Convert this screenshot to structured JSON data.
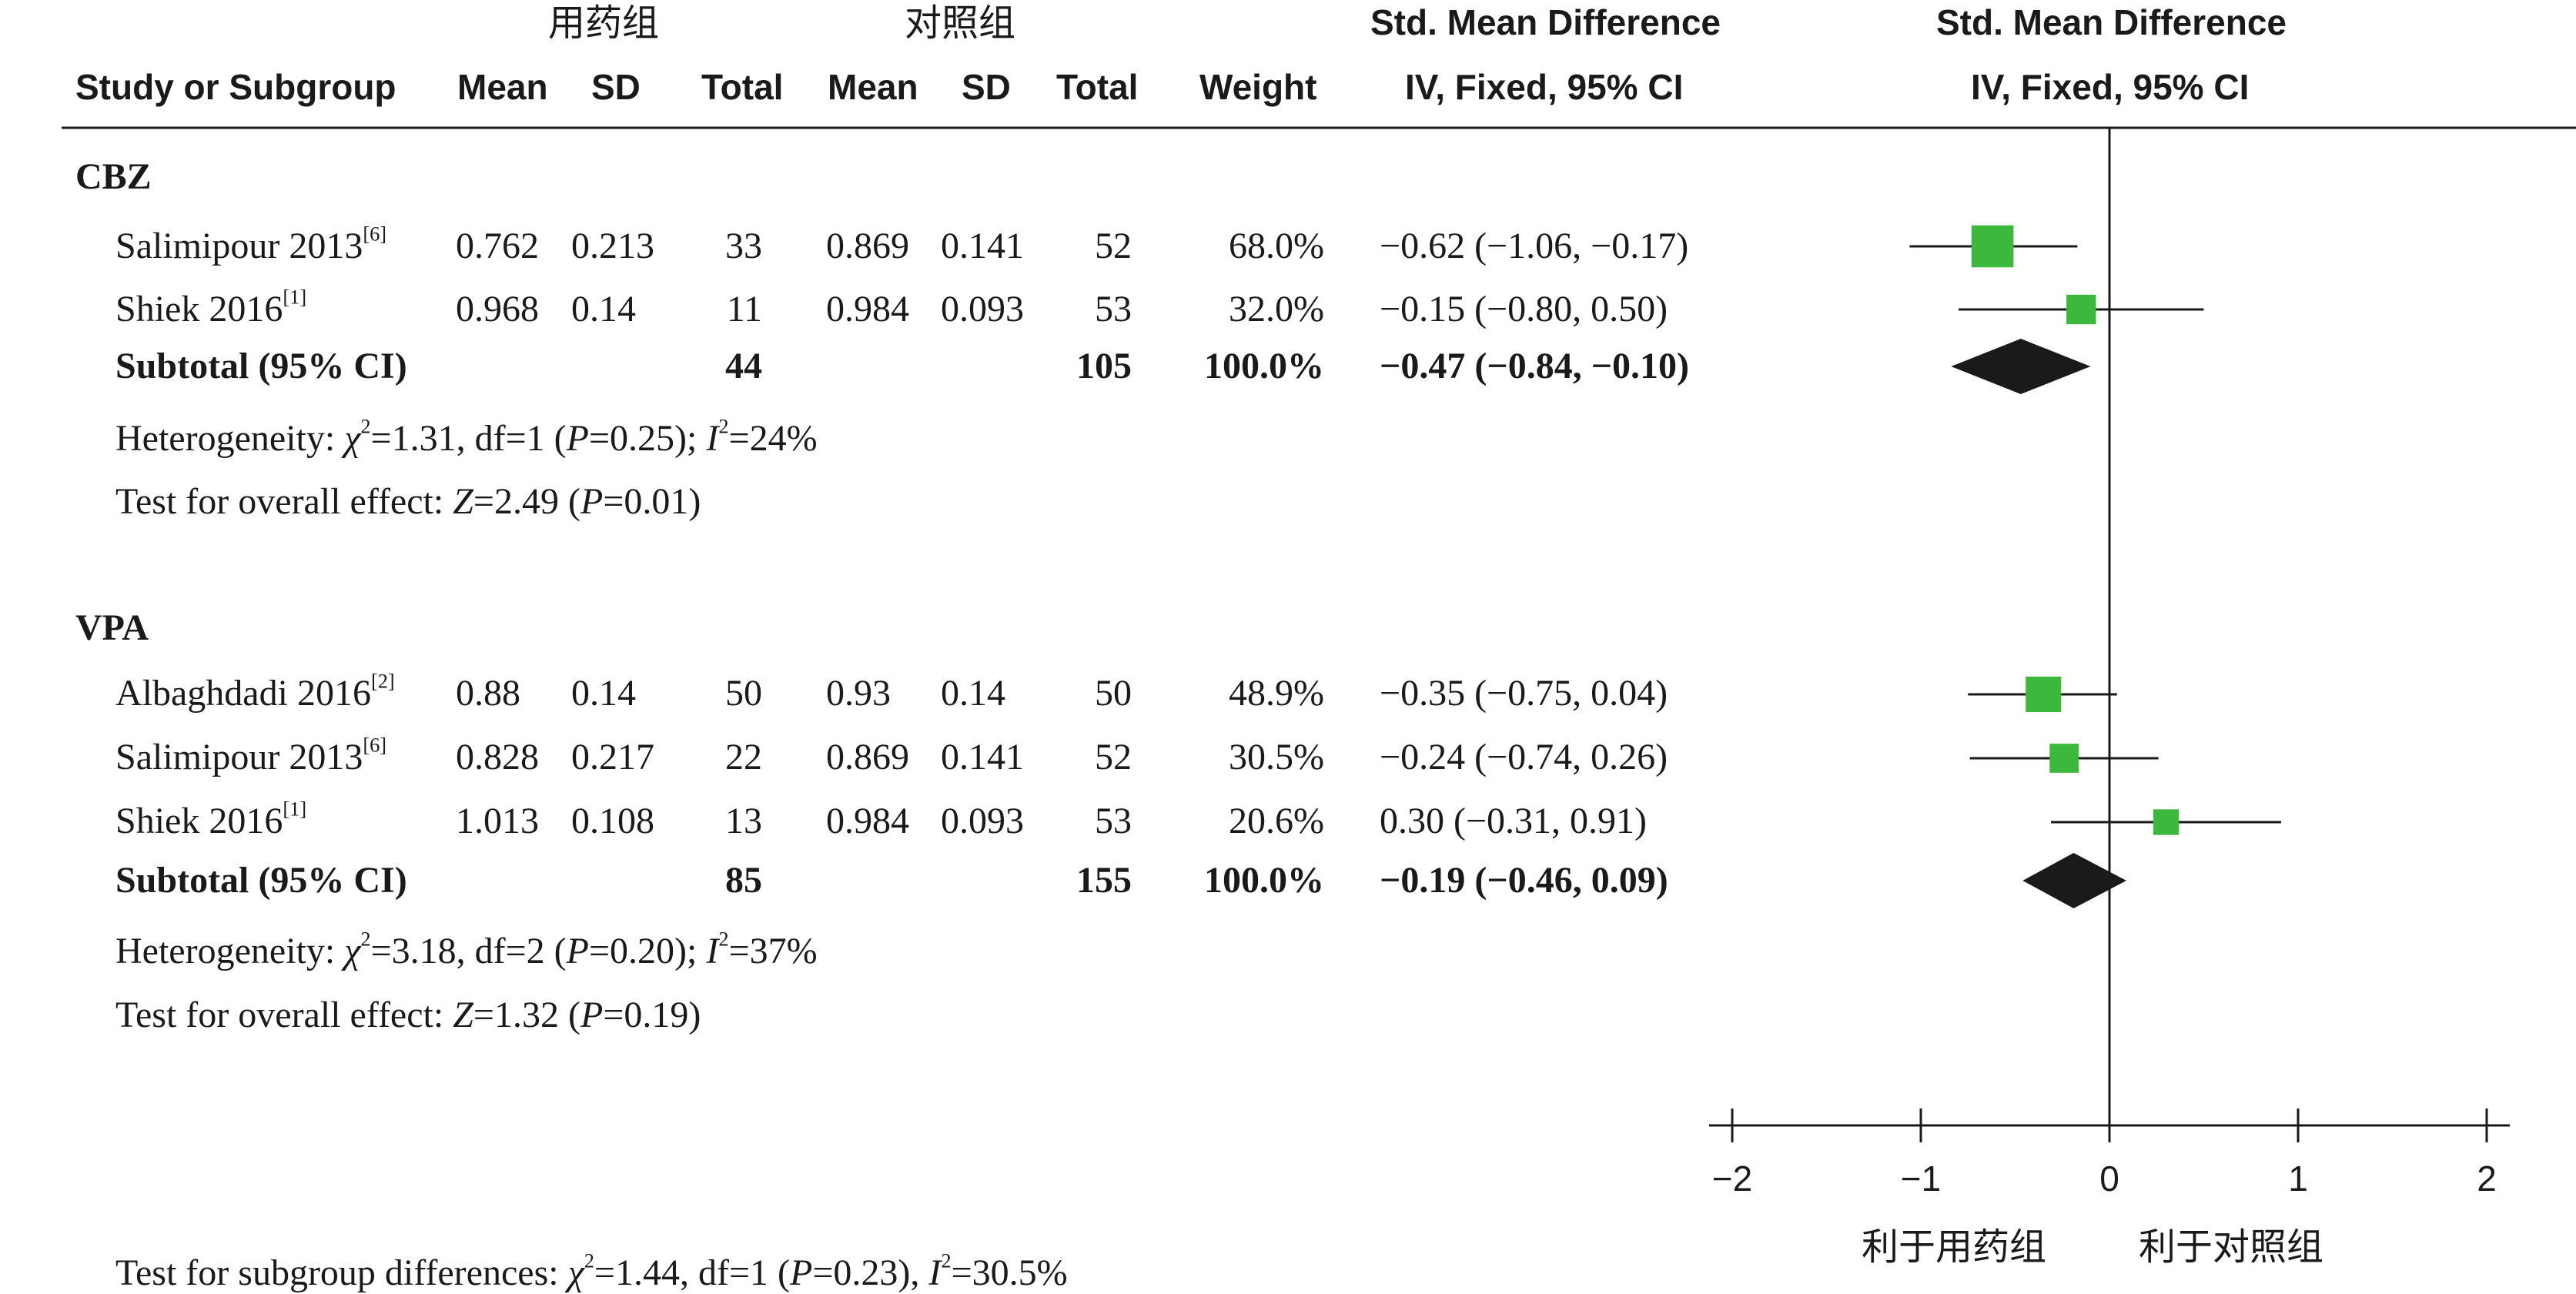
{
  "header": {
    "group1": "用药组",
    "group2": "对照组",
    "smd_title": "Std. Mean Difference",
    "smd_method": "IV, Fixed, 95% CI",
    "plot_title": "Std. Mean Difference",
    "plot_method": "IV, Fixed, 95% CI",
    "col_study": "Study or Subgroup",
    "col_mean1": "Mean",
    "col_sd1": "SD",
    "col_total1": "Total",
    "col_mean2": "Mean",
    "col_sd2": "SD",
    "col_total2": "Total",
    "col_weight": "Weight"
  },
  "subgroups": [
    {
      "name": "CBZ",
      "studies": [
        {
          "study": "Salimipour 2013",
          "ref": "[6]",
          "mean1": "0.762",
          "sd1": "0.213",
          "total1": "33",
          "mean2": "0.869",
          "sd2": "0.141",
          "total2": "52",
          "weight": "68.0%",
          "ci": "−0.62 (−1.06, −0.17)"
        },
        {
          "study": "Shiek 2016",
          "ref": "[1]",
          "mean1": "0.968",
          "sd1": "0.14",
          "total1": "11",
          "mean2": "0.984",
          "sd2": "0.093",
          "total2": "53",
          "weight": "32.0%",
          "ci": "−0.15 (−0.80, 0.50)"
        }
      ],
      "subtotal": {
        "label": "Subtotal (95% CI)",
        "total1": "44",
        "total2": "105",
        "weight": "100.0%",
        "ci": "−0.47 (−0.84, −0.10)"
      },
      "heterogeneity": {
        "prefix": "Heterogeneity: ",
        "chi": "χ",
        "chi_sup": "2",
        "chi_val": "=1.31, df=1 (",
        "p": "P",
        "p_val": "=0.25); ",
        "i": "I",
        "i_sup": "2",
        "i_val": "=24%"
      },
      "overall": {
        "prefix": "Test for overall effect: ",
        "z": "Z",
        "z_val": "=2.49 (",
        "p": "P",
        "p_val": "=0.01)"
      }
    },
    {
      "name": "VPA",
      "studies": [
        {
          "study": "Albaghdadi 2016",
          "ref": "[2]",
          "mean1": "0.88",
          "sd1": "0.14",
          "total1": "50",
          "mean2": "0.93",
          "sd2": "0.14",
          "total2": "50",
          "weight": "48.9%",
          "ci": "−0.35 (−0.75, 0.04)"
        },
        {
          "study": "Salimipour 2013",
          "ref": "[6]",
          "mean1": "0.828",
          "sd1": "0.217",
          "total1": "22",
          "mean2": "0.869",
          "sd2": "0.141",
          "total2": "52",
          "weight": "30.5%",
          "ci": "−0.24 (−0.74, 0.26)"
        },
        {
          "study": "Shiek 2016",
          "ref": "[1]",
          "mean1": "1.013",
          "sd1": "0.108",
          "total1": "13",
          "mean2": "0.984",
          "sd2": "0.093",
          "total2": "53",
          "weight": "20.6%",
          "ci": "0.30 (−0.31, 0.91)"
        }
      ],
      "subtotal": {
        "label": "Subtotal (95% CI)",
        "total1": "85",
        "total2": "155",
        "weight": "100.0%",
        "ci": "−0.19 (−0.46, 0.09)"
      },
      "heterogeneity": {
        "prefix": "Heterogeneity: ",
        "chi": "χ",
        "chi_sup": "2",
        "chi_val": "=3.18, df=2 (",
        "p": "P",
        "p_val": "=0.20); ",
        "i": "I",
        "i_sup": "2",
        "i_val": "=37%"
      },
      "overall": {
        "prefix": "Test for overall effect: ",
        "z": "Z",
        "z_val": "=1.32 (",
        "p": "P",
        "p_val": "=0.19)"
      }
    }
  ],
  "subgroup_test": {
    "prefix": "Test for subgroup differences: ",
    "chi": "χ",
    "chi_sup": "2",
    "chi_val": "=1.44, df=1 (",
    "p": "P",
    "p_val": "=0.23), ",
    "i": "I",
    "i_sup": "2",
    "i_val": "=30.5%"
  },
  "axis": {
    "favor_left": "利于用药组",
    "favor_right": "利于对照组"
  },
  "colors": {
    "square": "#3cb83c",
    "diamond": "#1a1a1a",
    "line": "#1a1a1a"
  },
  "chart_data": {
    "type": "forest",
    "xlim": [
      -2,
      2
    ],
    "ticks": [
      -2,
      -1,
      0,
      1,
      2
    ],
    "tick_labels": [
      "−2",
      "−1",
      "0",
      "1",
      "2"
    ],
    "null_line": 0,
    "studies": [
      {
        "subgroup": "CBZ",
        "label": "Salimipour 2013",
        "est": -0.62,
        "lo": -1.06,
        "hi": -0.17,
        "weight": 68.0
      },
      {
        "subgroup": "CBZ",
        "label": "Shiek 2016",
        "est": -0.15,
        "lo": -0.8,
        "hi": 0.5,
        "weight": 32.0
      },
      {
        "subgroup": "VPA",
        "label": "Albaghdadi 2016",
        "est": -0.35,
        "lo": -0.75,
        "hi": 0.04,
        "weight": 48.9
      },
      {
        "subgroup": "VPA",
        "label": "Salimipour 2013",
        "est": -0.24,
        "lo": -0.74,
        "hi": 0.26,
        "weight": 30.5
      },
      {
        "subgroup": "VPA",
        "label": "Shiek 2016",
        "est": 0.3,
        "lo": -0.31,
        "hi": 0.91,
        "weight": 20.6
      }
    ],
    "subtotals": [
      {
        "subgroup": "CBZ",
        "est": -0.47,
        "lo": -0.84,
        "hi": -0.1
      },
      {
        "subgroup": "VPA",
        "est": -0.19,
        "lo": -0.46,
        "hi": 0.09
      }
    ]
  }
}
